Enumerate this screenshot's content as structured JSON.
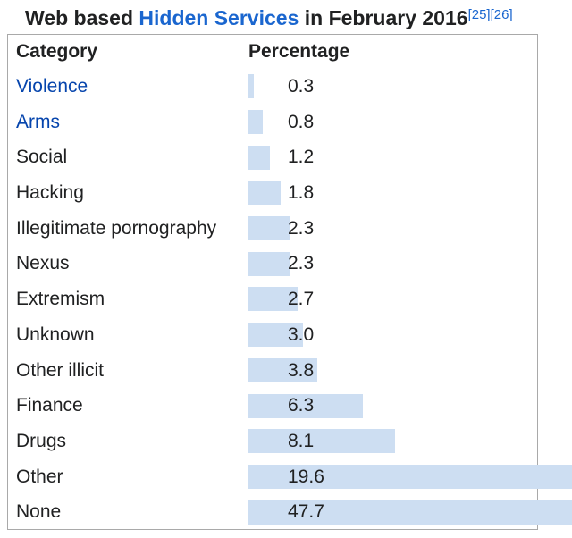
{
  "title": {
    "prefix": "Web based ",
    "link_text": "Hidden Services",
    "suffix": " in February 2016",
    "ref1": "[25]",
    "ref2": "[26]"
  },
  "table": {
    "header_category": "Category",
    "header_percentage": "Percentage",
    "rows": [
      {
        "category": "Violence",
        "link": true,
        "value": "0.3"
      },
      {
        "category": "Arms",
        "link": true,
        "value": "0.8"
      },
      {
        "category": "Social",
        "link": false,
        "value": "1.2"
      },
      {
        "category": "Hacking",
        "link": false,
        "value": "1.8"
      },
      {
        "category": "Illegitimate pornography",
        "link": false,
        "value": "2.3"
      },
      {
        "category": "Nexus",
        "link": false,
        "value": "2.3"
      },
      {
        "category": "Extremism",
        "link": false,
        "value": "2.7"
      },
      {
        "category": "Unknown",
        "link": false,
        "value": "3.0"
      },
      {
        "category": "Other illicit",
        "link": false,
        "value": "3.8"
      },
      {
        "category": "Finance",
        "link": false,
        "value": "6.3"
      },
      {
        "category": "Drugs",
        "link": false,
        "value": "8.1"
      },
      {
        "category": "Other",
        "link": false,
        "value": "19.6"
      },
      {
        "category": "None",
        "link": false,
        "value": "47.7"
      }
    ]
  },
  "colors": {
    "bar": "#cddef2",
    "body_link": "#0645ad",
    "title_link": "#1a66cf",
    "text": "#202122",
    "border": "#a9a9a9"
  },
  "chart_data": {
    "type": "bar",
    "orientation": "horizontal",
    "title": "Web based Hidden Services in February 2016",
    "columns": [
      "Category",
      "Percentage"
    ],
    "categories": [
      "Violence",
      "Arms",
      "Social",
      "Hacking",
      "Illegitimate pornography",
      "Nexus",
      "Extremism",
      "Unknown",
      "Other illicit",
      "Finance",
      "Drugs",
      "Other",
      "None"
    ],
    "values": [
      0.3,
      0.8,
      1.2,
      1.8,
      2.3,
      2.3,
      2.7,
      3.0,
      3.8,
      6.3,
      8.1,
      19.6,
      47.7
    ],
    "value_unit": "percent",
    "bar_color": "#cddef2",
    "grid": false,
    "legend": false,
    "notes": "Bars for Other and None overflow the table right border and are clipped at the image edge"
  }
}
